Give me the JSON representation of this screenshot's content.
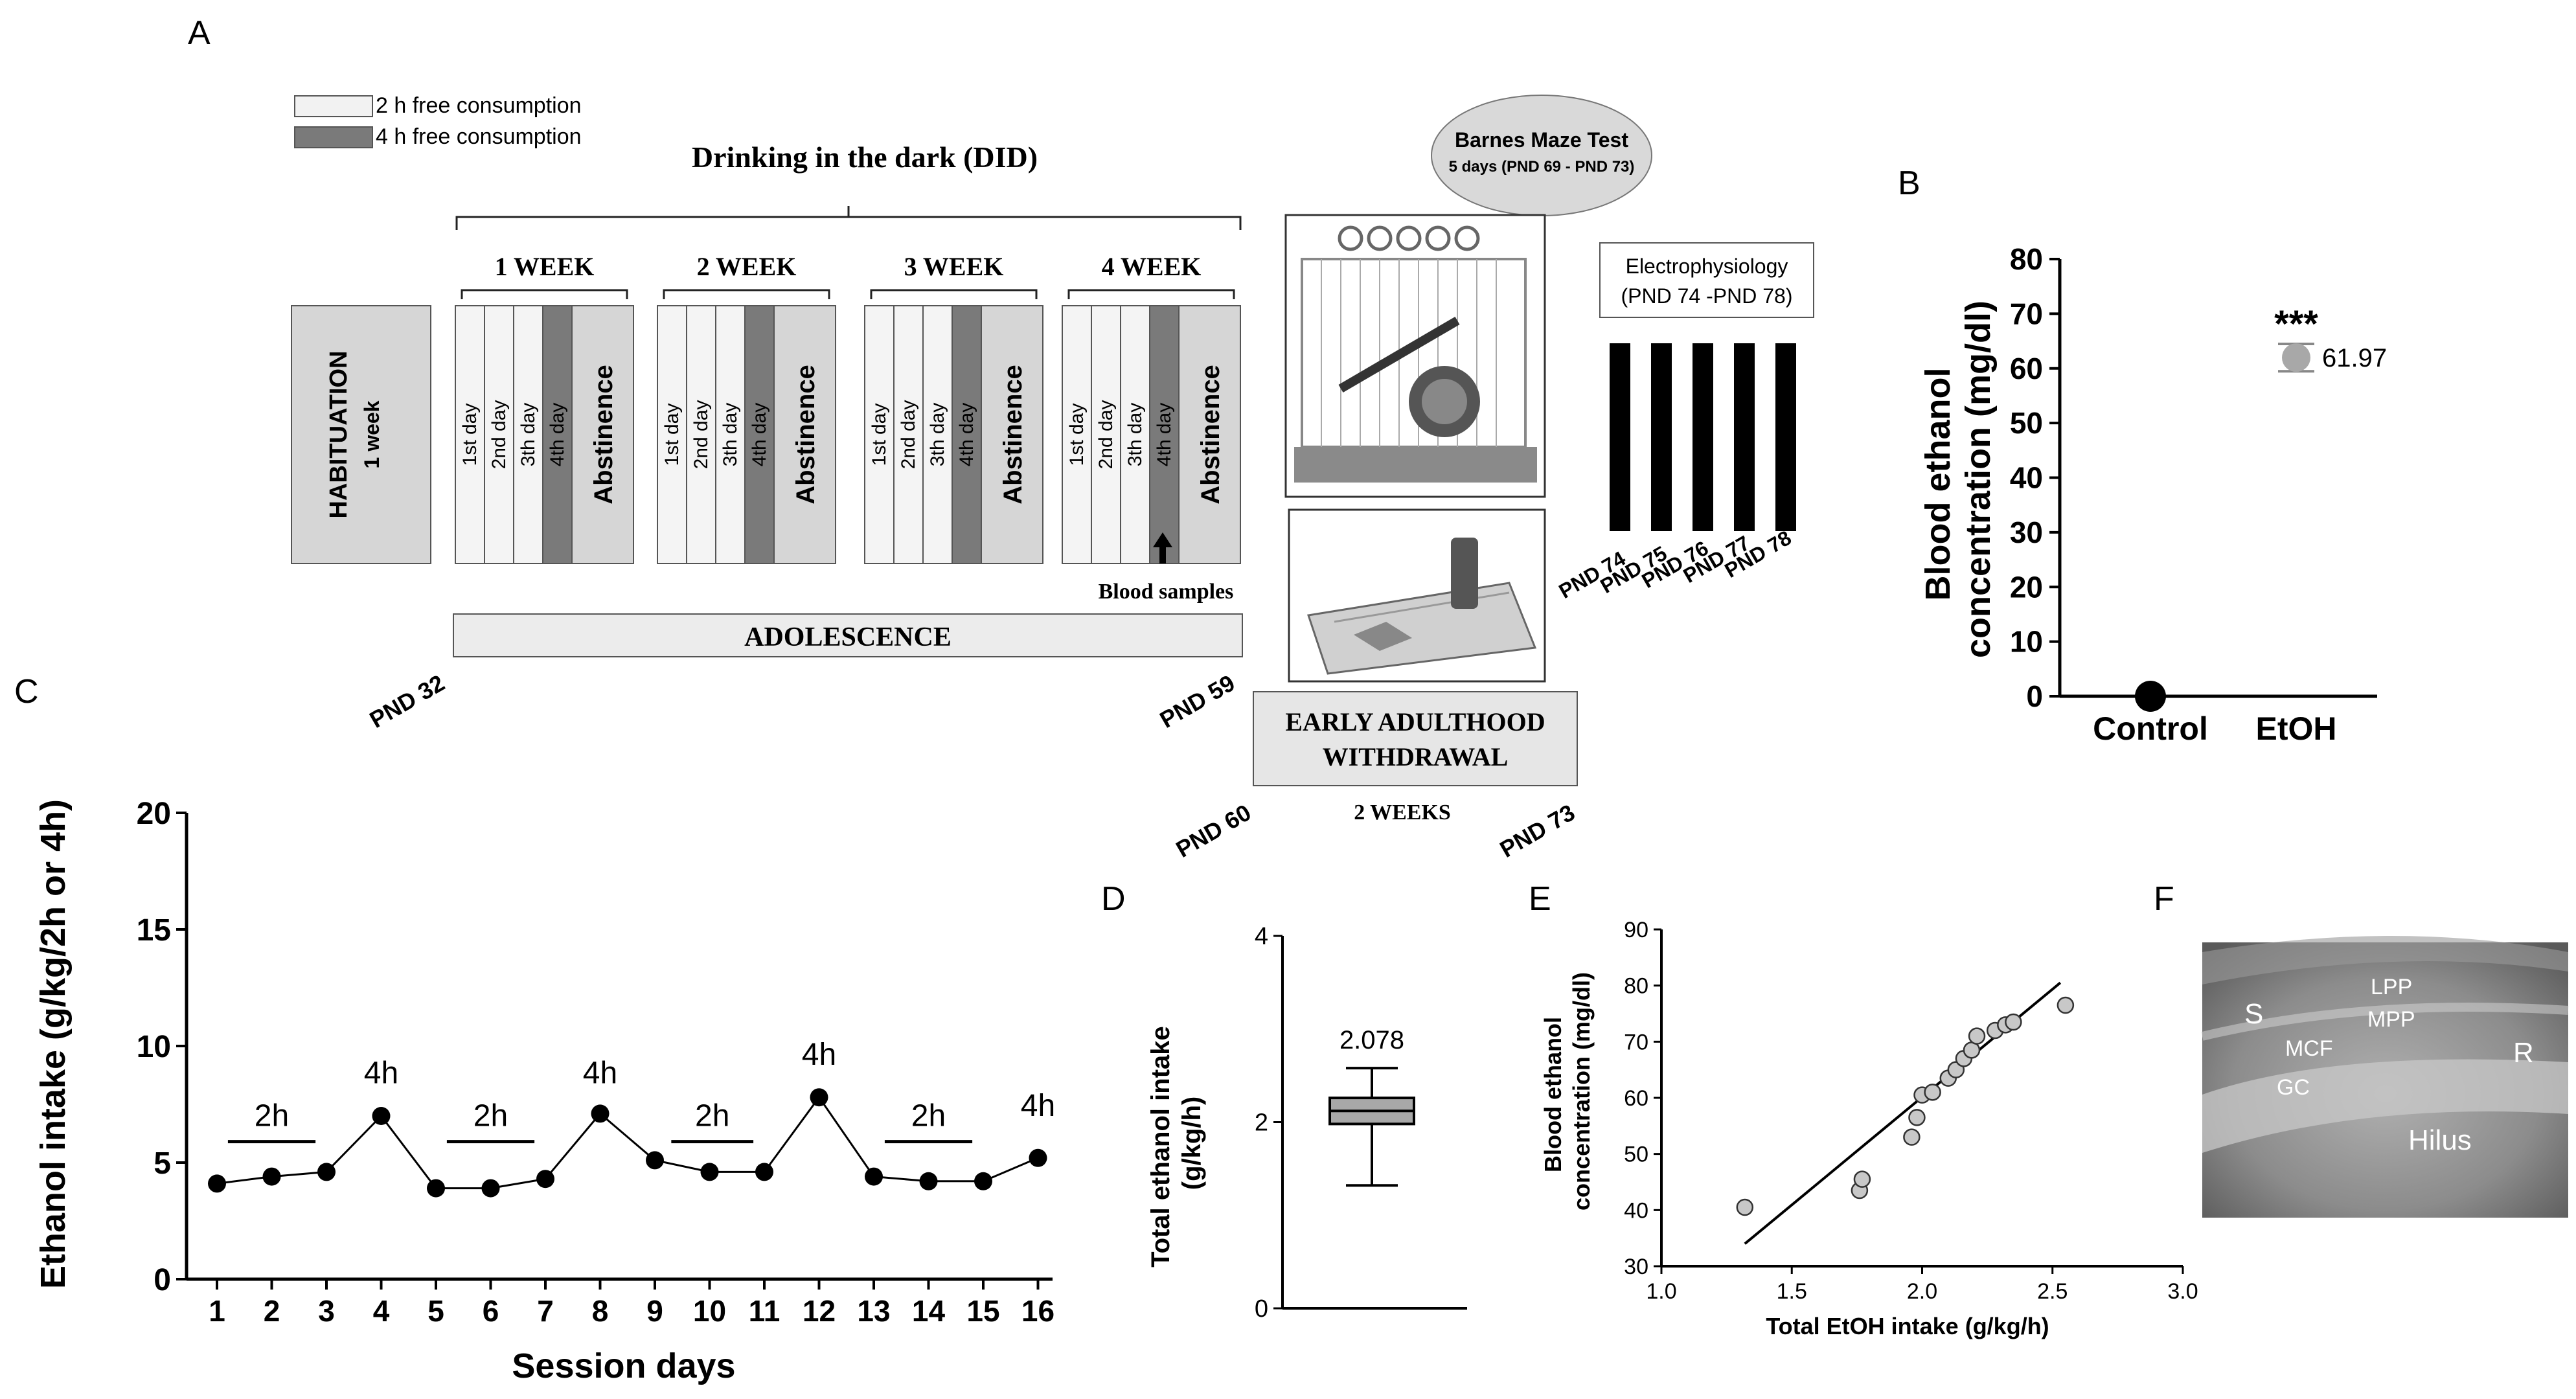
{
  "panel_labels": {
    "A": "A",
    "B": "B",
    "C": "C",
    "D": "D",
    "E": "E",
    "F": "F"
  },
  "panel_a": {
    "legend": [
      {
        "label": "2 h free consumption",
        "color": "#f2f2f2"
      },
      {
        "label": "4 h free consumption",
        "color": "#7a7a7a"
      }
    ],
    "did_title": "Drinking in the dark (DID)",
    "habituation": {
      "title": "HABITUATION",
      "subtitle": "1 week"
    },
    "weeks": [
      {
        "label": "1 WEEK"
      },
      {
        "label": "2 WEEK"
      },
      {
        "label": "3 WEEK"
      },
      {
        "label": "4 WEEK"
      }
    ],
    "days": [
      "1st day",
      "2nd day",
      "3th day",
      "4th day"
    ],
    "abstinence": "Abstinence",
    "blood_samples": "Blood samples",
    "adolescence": "ADOLESCENCE",
    "pnd_start": "PND 32",
    "pnd_end": "PND 59",
    "barnes": {
      "title": "Barnes Maze Test",
      "subtitle": "5 days (PND 69 - PND 73)"
    },
    "withdrawal": {
      "line1": "EARLY ADULTHOOD",
      "line2": "WITHDRAWAL"
    },
    "pnd_60": "PND 60",
    "pnd_73": "PND 73",
    "two_weeks": "2 WEEKS",
    "electro": {
      "line1": "Electrophysiology",
      "line2": "(PND 74 -PND 78)"
    },
    "electro_days": [
      "PND 74",
      "PND 75",
      "PND 76",
      "PND 77",
      "PND 78"
    ],
    "colors": {
      "light": "#f4f4f4",
      "dark": "#7a7a7a",
      "box": "#d6d6d6",
      "bar": "#000000"
    }
  },
  "chart_data": [
    {
      "id": "B",
      "type": "scatter",
      "categories": [
        "Control",
        "EtOH"
      ],
      "values": [
        0,
        61.97
      ],
      "error": [
        0,
        2.5
      ],
      "ylabel": "Blood ethanol concentration (mg/dl)",
      "ylim": [
        0,
        80
      ],
      "yticks": [
        0,
        10,
        20,
        30,
        40,
        50,
        60,
        70,
        80
      ],
      "annotation_value": "61.97",
      "significance": "***",
      "colors": [
        "#000000",
        "#a8a8a8"
      ]
    },
    {
      "id": "C",
      "type": "line",
      "x": [
        1,
        2,
        3,
        4,
        5,
        6,
        7,
        8,
        9,
        10,
        11,
        12,
        13,
        14,
        15,
        16
      ],
      "values": [
        4.1,
        4.4,
        4.6,
        7.0,
        3.9,
        3.9,
        4.3,
        7.1,
        5.1,
        4.6,
        4.6,
        7.8,
        4.4,
        4.2,
        4.2,
        5.2
      ],
      "xlabel": "Session days",
      "ylabel": "Ethanol intake (g/kg/2h or 4h)",
      "ylim": [
        0,
        20
      ],
      "yticks": [
        0,
        5,
        10,
        15,
        20
      ],
      "annotations": [
        {
          "label": "2h",
          "x_from": 1.2,
          "x_to": 2.8,
          "y": 5.9
        },
        {
          "label": "4h",
          "x": 4,
          "y": 8.4
        },
        {
          "label": "2h",
          "x_from": 5.2,
          "x_to": 6.8,
          "y": 5.9
        },
        {
          "label": "4h",
          "x": 8,
          "y": 8.4
        },
        {
          "label": "2h",
          "x_from": 9.3,
          "x_to": 10.8,
          "y": 5.9
        },
        {
          "label": "4h",
          "x": 12,
          "y": 9.2
        },
        {
          "label": "2h",
          "x_from": 13.2,
          "x_to": 14.8,
          "y": 5.9
        },
        {
          "label": "4h",
          "x": 16,
          "y": 7.0
        }
      ]
    },
    {
      "id": "D",
      "type": "box",
      "ylabel": "Total ethanol intake (g/kg/h)",
      "ylim": [
        0,
        4
      ],
      "yticks": [
        0,
        2,
        4
      ],
      "min": 1.32,
      "q1": 1.98,
      "median": 2.12,
      "q3": 2.26,
      "max": 2.58,
      "mean_label": "2.078",
      "color": "#a8a8a8"
    },
    {
      "id": "E",
      "type": "scatter",
      "xlabel": "Total EtOH intake (g/kg/h)",
      "ylabel": "Blood ethanol concentration (mg/dl)",
      "xlim": [
        1.0,
        3.0
      ],
      "ylim": [
        30,
        90
      ],
      "xticks": [
        1.0,
        1.5,
        2.0,
        2.5,
        3.0
      ],
      "yticks": [
        30,
        40,
        50,
        60,
        70,
        80,
        90
      ],
      "points": [
        [
          1.32,
          40.5
        ],
        [
          1.76,
          43.5
        ],
        [
          1.77,
          45.5
        ],
        [
          1.96,
          53
        ],
        [
          1.98,
          56.5
        ],
        [
          2.0,
          60.5
        ],
        [
          2.04,
          61
        ],
        [
          2.1,
          63.5
        ],
        [
          2.13,
          65
        ],
        [
          2.16,
          67
        ],
        [
          2.19,
          68.5
        ],
        [
          2.21,
          71
        ],
        [
          2.28,
          72
        ],
        [
          2.32,
          73
        ],
        [
          2.35,
          73.5
        ],
        [
          2.55,
          76.5
        ]
      ],
      "fit": [
        [
          1.32,
          34
        ],
        [
          2.53,
          80.5
        ]
      ],
      "color": "#c8c8c8"
    }
  ],
  "panel_f": {
    "labels": [
      "S",
      "LPP",
      "MPP",
      "MCF",
      "GC",
      "R",
      "Hilus"
    ]
  }
}
